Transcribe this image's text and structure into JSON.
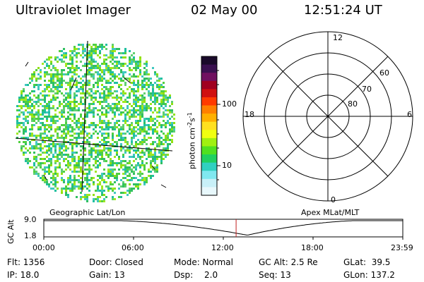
{
  "header": {
    "instrument": "Ultraviolet Imager",
    "date": "02 May 00",
    "time": "12:51:24 UT"
  },
  "colorbar": {
    "unit": "photon cm",
    "unit_exp1": "-2",
    "unit_mid": "s",
    "unit_exp2": "-1",
    "ticks": [
      "100",
      "10"
    ],
    "colors": [
      "#1a0a2a",
      "#3a1050",
      "#701060",
      "#a00020",
      "#d01010",
      "#ff3a00",
      "#ff8000",
      "#ffb000",
      "#ffe020",
      "#f0ff10",
      "#a0f010",
      "#50e020",
      "#20d060",
      "#30d0c0",
      "#80e8f0",
      "#c8f0f8",
      "#e8f8fc"
    ]
  },
  "polar": {
    "mlt_labels": {
      "top": "12",
      "left": "18",
      "right": "6",
      "bottom": "0"
    },
    "lat_labels": [
      "60",
      "70",
      "80"
    ]
  },
  "timeline": {
    "y_label": "GC Alt",
    "y_max": "9.0",
    "y_min": "1.8",
    "left_caption": "Geographic Lat/Lon",
    "right_caption": "Apex MLat/MLT",
    "time_ticks": [
      "00:00",
      "06:00",
      "12:00",
      "18:00",
      "23:59"
    ],
    "marker_time": "12:51:24"
  },
  "info": {
    "flt": "Flt: 1356",
    "ip": "IP: 18.0",
    "door": "Door: Closed",
    "gain": "Gain: 13",
    "mode": "Mode: Normal",
    "dsp_label": "Dsp:",
    "dsp_value": "2.0",
    "gc_alt": "GC Alt: 2.5 Re",
    "seq": "Seq: 13",
    "glat": "GLat:  39.5",
    "glon": "GLon: 137.2"
  }
}
